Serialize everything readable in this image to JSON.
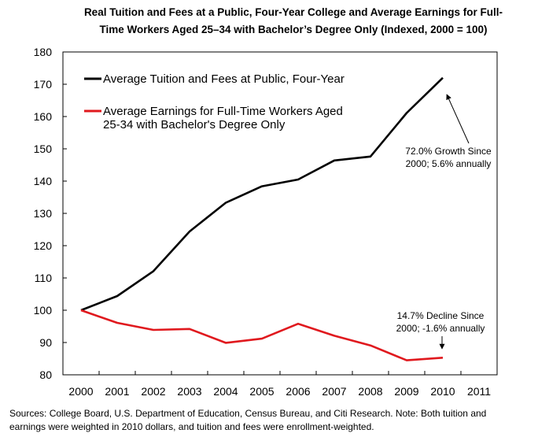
{
  "title_lines": [
    "Real Tuition and Fees at a Public, Four-Year College and Average Earnings for Full-",
    "Time Workers Aged 25–34 with Bachelor’s Degree Only (Indexed, 2000 = 100)"
  ],
  "source_lines": [
    "Sources: College Board, U.S. Department of Education, Census Bureau, and Citi Research. Note: Both tuition and",
    "earnings were weighted in 2010 dollars, and tuition and fees were enrollment-weighted."
  ],
  "chart_data": {
    "type": "line",
    "title": "Real Tuition and Fees at a Public, Four-Year College and Average Earnings for Full-Time Workers Aged 25–34 with Bachelor’s Degree Only (Indexed, 2000 = 100)",
    "x": [
      2000,
      2001,
      2002,
      2003,
      2004,
      2005,
      2006,
      2007,
      2008,
      2009,
      2010
    ],
    "x_ticks": [
      "2000",
      "2001",
      "2002",
      "2003",
      "2004",
      "2005",
      "2006",
      "2007",
      "2008",
      "2009",
      "2010",
      "2011"
    ],
    "y_ticks": [
      80,
      90,
      100,
      110,
      120,
      130,
      140,
      150,
      160,
      170,
      180
    ],
    "xlim": [
      2000,
      2011
    ],
    "ylim": [
      80,
      180
    ],
    "grid": false,
    "legend_position": "top-left",
    "series": [
      {
        "name_lines": [
          "Average Tuition and Fees at Public, Four-Year"
        ],
        "color": "#000000",
        "values": [
          100,
          104.4,
          112.1,
          124.4,
          133.3,
          138.4,
          140.5,
          146.4,
          147.6,
          161.1,
          172.0
        ]
      },
      {
        "name_lines": [
          "Average Earnings for Full-Time Workers Aged",
          "25-34 with Bachelor's Degree Only"
        ],
        "color": "#e0191e",
        "values": [
          100,
          96.1,
          93.9,
          94.2,
          89.9,
          91.2,
          95.8,
          92.1,
          89.1,
          84.5,
          85.3
        ]
      }
    ],
    "annotations": [
      {
        "lines": [
          "72.0% Growth Since",
          "2000; 5.6% annually"
        ],
        "target_x": 2010,
        "target_y": 172.0
      },
      {
        "lines": [
          "14.7% Decline Since",
          "2000; -1.6% annually"
        ],
        "target_x": 2010,
        "target_y": 85.3
      }
    ]
  }
}
